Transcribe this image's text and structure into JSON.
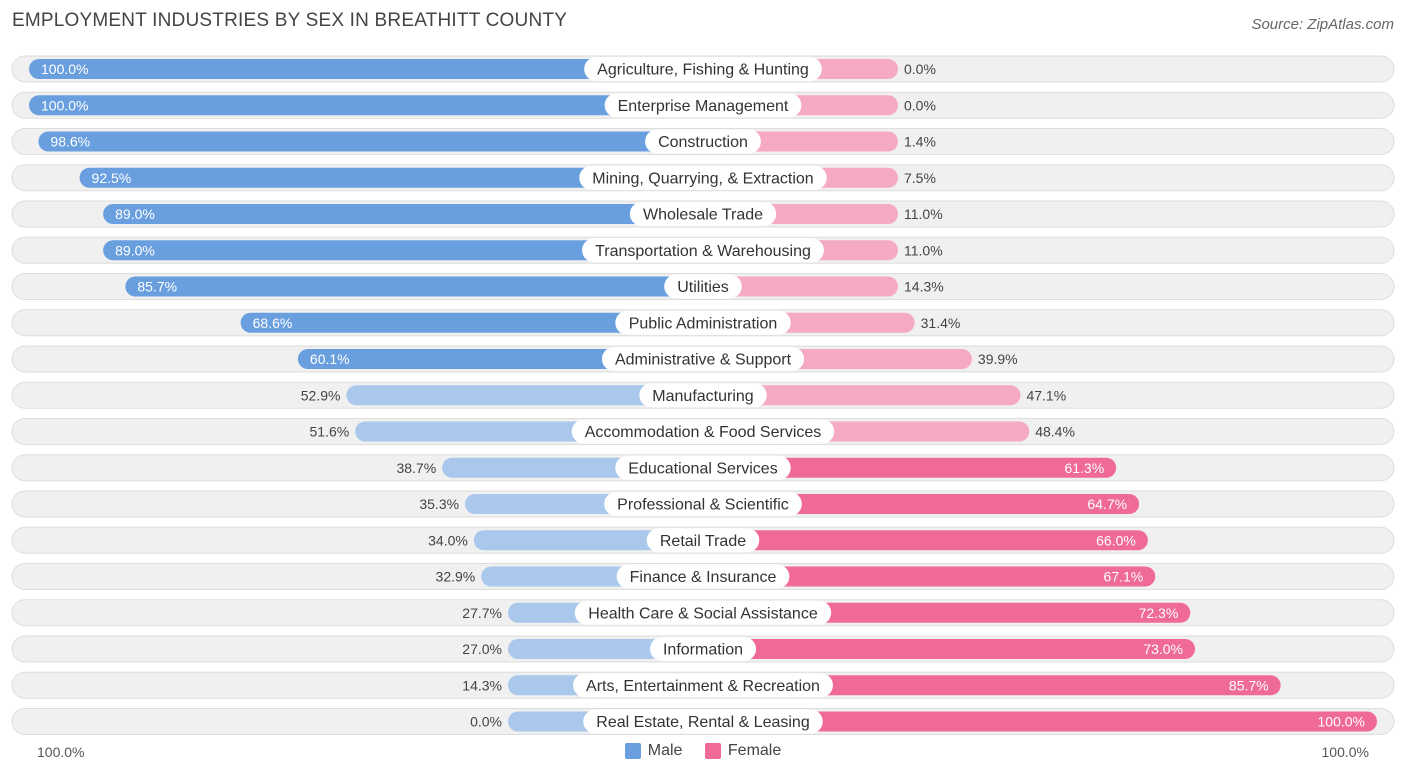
{
  "colors": {
    "male": "#6a9fdf",
    "male_light": "#a9c8ec",
    "female": "#f06a97",
    "female_light": "#f6a9c4",
    "row_bg": "#f0f0f0",
    "row_border": "#dddddd"
  },
  "chart_data": {
    "type": "bar",
    "title": "EMPLOYMENT INDUSTRIES BY SEX IN BREATHITT COUNTY",
    "source": "Source: ZipAtlas.com",
    "axis_left_label": "100.0%",
    "axis_right_label": "100.0%",
    "xlim": [
      0,
      100
    ],
    "legend": [
      "Male",
      "Female"
    ],
    "legend_position": "bottom-center",
    "categories": [
      "Agriculture, Fishing & Hunting",
      "Enterprise Management",
      "Construction",
      "Mining, Quarrying, & Extraction",
      "Wholesale Trade",
      "Transportation & Warehousing",
      "Utilities",
      "Public Administration",
      "Administrative & Support",
      "Manufacturing",
      "Accommodation & Food Services",
      "Educational Services",
      "Professional & Scientific",
      "Retail Trade",
      "Finance & Insurance",
      "Health Care & Social Assistance",
      "Information",
      "Arts, Entertainment & Recreation",
      "Real Estate, Rental & Leasing"
    ],
    "series": [
      {
        "name": "Male",
        "values": [
          100.0,
          100.0,
          98.6,
          92.5,
          89.0,
          89.0,
          85.7,
          68.6,
          60.1,
          52.9,
          51.6,
          38.7,
          35.3,
          34.0,
          32.9,
          27.7,
          27.0,
          14.3,
          0.0
        ],
        "labels": [
          "100.0%",
          "100.0%",
          "98.6%",
          "92.5%",
          "89.0%",
          "89.0%",
          "85.7%",
          "68.6%",
          "60.1%",
          "52.9%",
          "51.6%",
          "38.7%",
          "35.3%",
          "34.0%",
          "32.9%",
          "27.7%",
          "27.0%",
          "14.3%",
          "0.0%"
        ]
      },
      {
        "name": "Female",
        "values": [
          0.0,
          0.0,
          1.4,
          7.5,
          11.0,
          11.0,
          14.3,
          31.4,
          39.9,
          47.1,
          48.4,
          61.3,
          64.7,
          66.0,
          67.1,
          72.3,
          73.0,
          85.7,
          100.0
        ],
        "labels": [
          "0.0%",
          "0.0%",
          "1.4%",
          "7.5%",
          "11.0%",
          "11.0%",
          "14.3%",
          "31.4%",
          "39.9%",
          "47.1%",
          "48.4%",
          "61.3%",
          "64.7%",
          "66.0%",
          "67.1%",
          "72.3%",
          "73.0%",
          "85.7%",
          "100.0%"
        ]
      }
    ]
  }
}
